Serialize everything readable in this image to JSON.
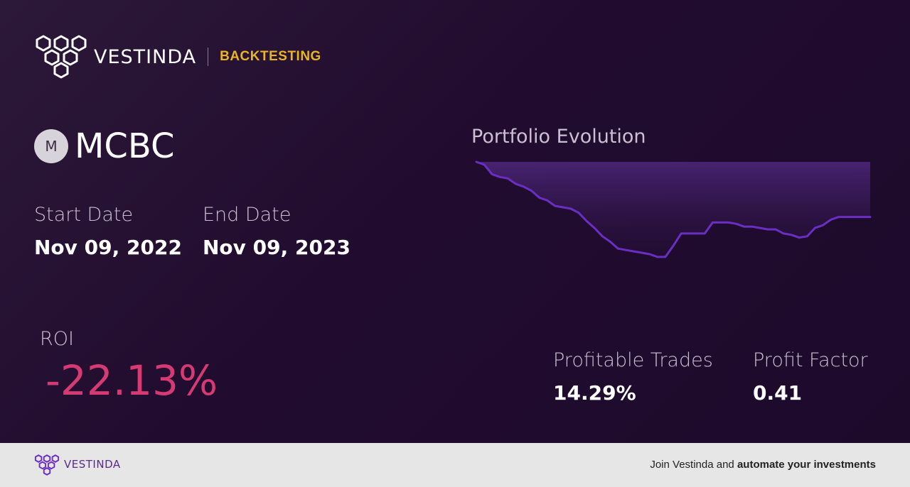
{
  "brand": {
    "name": "VESTINDA",
    "tag": "BACKTESTING",
    "accent": "#e8b422"
  },
  "ticker": {
    "initial": "M",
    "symbol": "MCBC"
  },
  "dates": {
    "start_label": "Start Date",
    "start_value": "Nov 09, 2022",
    "end_label": "End Date",
    "end_value": "Nov 09, 2023"
  },
  "roi": {
    "label": "ROI",
    "value": "-22.13%",
    "color": "#d63a73"
  },
  "stats": {
    "profitable_label": "Profitable Trades",
    "profitable_value": "14.29%",
    "factor_label": "Profit Factor",
    "factor_value": "0.41"
  },
  "chart": {
    "title": "Portfolio Evolution",
    "line_color": "#6a2fc2"
  },
  "chart_data": {
    "type": "area",
    "x": [
      0,
      2,
      4,
      6,
      8,
      10,
      12,
      14,
      16,
      18,
      20,
      22,
      24,
      26,
      28,
      30,
      32,
      34,
      36,
      38,
      40,
      42,
      44,
      46,
      48,
      50,
      52,
      54,
      56,
      58,
      60,
      62,
      64,
      66,
      68,
      70,
      72,
      74,
      76,
      78,
      80,
      82,
      84,
      86,
      88,
      90,
      92,
      94,
      96,
      98,
      100
    ],
    "values": [
      100,
      98,
      91,
      89,
      88,
      84,
      82,
      79,
      74,
      72,
      68,
      67,
      66,
      63,
      57,
      52,
      46,
      42,
      37,
      36,
      35,
      34,
      33,
      31,
      31,
      39,
      48,
      48,
      48,
      48,
      56,
      56,
      56,
      55,
      53,
      53,
      52,
      51,
      51,
      48,
      47,
      45,
      46,
      52,
      54,
      58,
      60,
      60,
      60,
      60,
      60
    ],
    "ylim": [
      0,
      100
    ]
  },
  "footer": {
    "name": "VESTINDA",
    "cta_prefix": "Join Vestinda and ",
    "cta_bold": "automate your investments"
  }
}
